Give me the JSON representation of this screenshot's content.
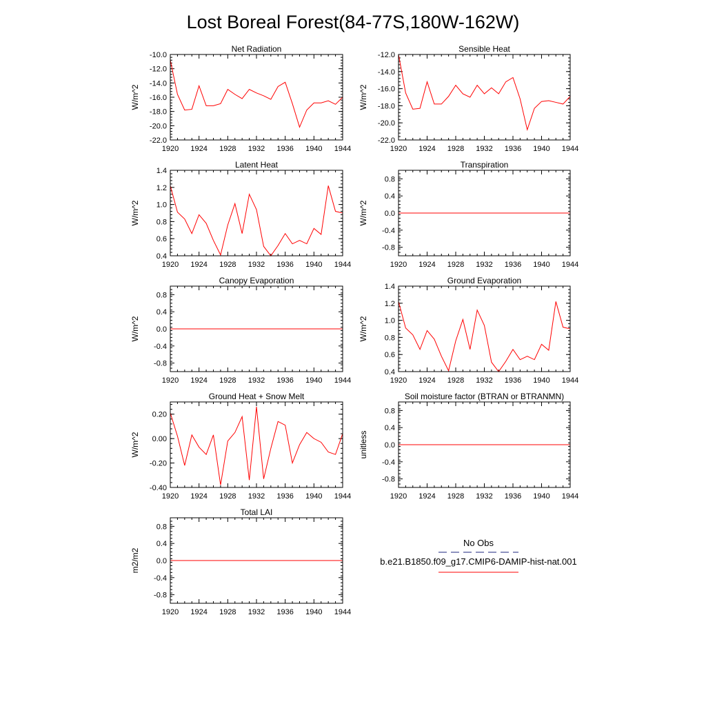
{
  "title": "Lost Boreal Forest(84-77S,180W-162W)",
  "legend": {
    "obs_label": "No Obs",
    "obs_color": "#1a237e",
    "model_label": "b.e21.B1850.f09_g17.CMIP6-DAMIP-hist-nat.001",
    "model_color": "#ff0000"
  },
  "chart_data": [
    {
      "type": "line",
      "title": "Net Radiation",
      "ylabel": "W/m^2",
      "xlim": [
        1920,
        1944
      ],
      "ylim": [
        -22,
        -10
      ],
      "x_ticks": [
        "1920",
        "1924",
        "1928",
        "1932",
        "1936",
        "1940",
        "1944"
      ],
      "y_ticks": [
        "-22.0",
        "-20.0",
        "-18.0",
        "-16.0",
        "-14.0",
        "-12.0",
        "-10.0"
      ],
      "y_tick_values": [
        -22,
        -20,
        -18,
        -16,
        -14,
        -12,
        -10
      ],
      "series": [
        {
          "color": "#ff0000",
          "x": [
            1920,
            1921,
            1922,
            1923,
            1924,
            1925,
            1926,
            1927,
            1928,
            1929,
            1930,
            1931,
            1932,
            1933,
            1934,
            1935,
            1936,
            1937,
            1938,
            1939,
            1940,
            1941,
            1942,
            1943,
            1944
          ],
          "values": [
            -10.8,
            -15.6,
            -17.8,
            -17.7,
            -14.4,
            -17.2,
            -17.2,
            -16.9,
            -14.9,
            -15.6,
            -16.2,
            -14.9,
            -15.4,
            -15.8,
            -16.3,
            -14.5,
            -13.9,
            -16.9,
            -20.2,
            -17.8,
            -16.8,
            -16.8,
            -16.5,
            -17.0,
            -16.0
          ]
        }
      ]
    },
    {
      "type": "line",
      "title": "Sensible Heat",
      "ylabel": "W/m^2",
      "xlim": [
        1920,
        1944
      ],
      "ylim": [
        -22,
        -12
      ],
      "x_ticks": [
        "1920",
        "1924",
        "1928",
        "1932",
        "1936",
        "1940",
        "1944"
      ],
      "y_ticks": [
        "-22.0",
        "-20.0",
        "-18.0",
        "-16.0",
        "-14.0",
        "-12.0"
      ],
      "y_tick_values": [
        -22,
        -20,
        -18,
        -16,
        -14,
        -12
      ],
      "series": [
        {
          "color": "#ff0000",
          "x": [
            1920,
            1921,
            1922,
            1923,
            1924,
            1925,
            1926,
            1927,
            1928,
            1929,
            1930,
            1931,
            1932,
            1933,
            1934,
            1935,
            1936,
            1937,
            1938,
            1939,
            1940,
            1941,
            1942,
            1943,
            1944
          ],
          "values": [
            -12.0,
            -16.5,
            -18.4,
            -18.3,
            -15.2,
            -17.8,
            -17.8,
            -16.9,
            -15.6,
            -16.6,
            -17.0,
            -15.6,
            -16.6,
            -15.9,
            -16.6,
            -15.2,
            -14.7,
            -17.2,
            -20.8,
            -18.3,
            -17.5,
            -17.4,
            -17.6,
            -17.8,
            -16.9
          ]
        }
      ]
    },
    {
      "type": "line",
      "title": "Latent Heat",
      "ylabel": "W/m^2",
      "xlim": [
        1920,
        1944
      ],
      "ylim": [
        0.4,
        1.4
      ],
      "x_ticks": [
        "1920",
        "1924",
        "1928",
        "1932",
        "1936",
        "1940",
        "1944"
      ],
      "y_ticks": [
        "0.4",
        "0.6",
        "0.8",
        "1.0",
        "1.2",
        "1.4"
      ],
      "y_tick_values": [
        0.4,
        0.6,
        0.8,
        1.0,
        1.2,
        1.4
      ],
      "series": [
        {
          "color": "#ff0000",
          "x": [
            1920,
            1921,
            1922,
            1923,
            1924,
            1925,
            1926,
            1927,
            1928,
            1929,
            1930,
            1931,
            1932,
            1933,
            1934,
            1935,
            1936,
            1937,
            1938,
            1939,
            1940,
            1941,
            1942,
            1943,
            1944
          ],
          "values": [
            1.22,
            0.91,
            0.83,
            0.66,
            0.88,
            0.78,
            0.58,
            0.41,
            0.76,
            1.01,
            0.66,
            1.12,
            0.94,
            0.51,
            0.4,
            0.52,
            0.66,
            0.54,
            0.58,
            0.54,
            0.72,
            0.65,
            1.22,
            0.92,
            0.9
          ]
        }
      ]
    },
    {
      "type": "line",
      "title": "Transpiration",
      "ylabel": "W/m^2",
      "xlim": [
        1920,
        1944
      ],
      "ylim": [
        -1.0,
        1.0
      ],
      "x_ticks": [
        "1920",
        "1924",
        "1928",
        "1932",
        "1936",
        "1940",
        "1944"
      ],
      "y_ticks": [
        "-0.8",
        "-0.4",
        "0.0",
        "0.4",
        "0.8"
      ],
      "y_tick_values": [
        -0.8,
        -0.4,
        0.0,
        0.4,
        0.8
      ],
      "series": [
        {
          "color": "#ff0000",
          "x": [
            1920,
            1944
          ],
          "values": [
            0.0,
            0.0
          ]
        }
      ]
    },
    {
      "type": "line",
      "title": "Canopy Evaporation",
      "ylabel": "W/m^2",
      "xlim": [
        1920,
        1944
      ],
      "ylim": [
        -1.0,
        1.0
      ],
      "x_ticks": [
        "1920",
        "1924",
        "1928",
        "1932",
        "1936",
        "1940",
        "1944"
      ],
      "y_ticks": [
        "-0.8",
        "-0.4",
        "0.0",
        "0.4",
        "0.8"
      ],
      "y_tick_values": [
        -0.8,
        -0.4,
        0.0,
        0.4,
        0.8
      ],
      "series": [
        {
          "color": "#ff0000",
          "x": [
            1920,
            1944
          ],
          "values": [
            0.0,
            0.0
          ]
        }
      ]
    },
    {
      "type": "line",
      "title": "Ground Evaporation",
      "ylabel": "W/m^2",
      "xlim": [
        1920,
        1944
      ],
      "ylim": [
        0.4,
        1.4
      ],
      "x_ticks": [
        "1920",
        "1924",
        "1928",
        "1932",
        "1936",
        "1940",
        "1944"
      ],
      "y_ticks": [
        "0.4",
        "0.6",
        "0.8",
        "1.0",
        "1.2",
        "1.4"
      ],
      "y_tick_values": [
        0.4,
        0.6,
        0.8,
        1.0,
        1.2,
        1.4
      ],
      "series": [
        {
          "color": "#ff0000",
          "x": [
            1920,
            1921,
            1922,
            1923,
            1924,
            1925,
            1926,
            1927,
            1928,
            1929,
            1930,
            1931,
            1932,
            1933,
            1934,
            1935,
            1936,
            1937,
            1938,
            1939,
            1940,
            1941,
            1942,
            1943,
            1944
          ],
          "values": [
            1.22,
            0.91,
            0.83,
            0.66,
            0.88,
            0.78,
            0.58,
            0.41,
            0.76,
            1.01,
            0.66,
            1.12,
            0.94,
            0.51,
            0.4,
            0.52,
            0.66,
            0.54,
            0.58,
            0.54,
            0.72,
            0.65,
            1.22,
            0.92,
            0.9
          ]
        }
      ]
    },
    {
      "type": "line",
      "title": "Ground Heat + Snow Melt",
      "ylabel": "W/m^2",
      "xlim": [
        1920,
        1944
      ],
      "ylim": [
        -0.4,
        0.3
      ],
      "x_ticks": [
        "1920",
        "1924",
        "1928",
        "1932",
        "1936",
        "1940",
        "1944"
      ],
      "y_ticks": [
        "-0.40",
        "-0.20",
        "0.00",
        "0.20"
      ],
      "y_tick_values": [
        -0.4,
        -0.2,
        0.0,
        0.2
      ],
      "series": [
        {
          "color": "#ff0000",
          "x": [
            1920,
            1921,
            1922,
            1923,
            1924,
            1925,
            1926,
            1927,
            1928,
            1929,
            1930,
            1931,
            1932,
            1933,
            1934,
            1935,
            1936,
            1937,
            1938,
            1939,
            1940,
            1941,
            1942,
            1943,
            1944
          ],
          "values": [
            0.21,
            0.02,
            -0.22,
            0.03,
            -0.07,
            -0.13,
            0.03,
            -0.38,
            -0.02,
            0.05,
            0.18,
            -0.34,
            0.26,
            -0.33,
            -0.08,
            0.14,
            0.11,
            -0.2,
            -0.05,
            0.05,
            0.0,
            -0.03,
            -0.11,
            -0.13,
            0.04
          ]
        }
      ]
    },
    {
      "type": "line",
      "title": "Soil moisture factor (BTRAN or BTRANMN)",
      "ylabel": "unitless",
      "xlim": [
        1920,
        1944
      ],
      "ylim": [
        -1.0,
        1.0
      ],
      "x_ticks": [
        "1920",
        "1924",
        "1928",
        "1932",
        "1936",
        "1940",
        "1944"
      ],
      "y_ticks": [
        "-0.8",
        "-0.4",
        "0.0",
        "0.4",
        "0.8"
      ],
      "y_tick_values": [
        -0.8,
        -0.4,
        0.0,
        0.4,
        0.8
      ],
      "series": [
        {
          "color": "#ff0000",
          "x": [
            1920,
            1944
          ],
          "values": [
            0.0,
            0.0
          ]
        }
      ]
    },
    {
      "type": "line",
      "title": "Total LAI",
      "ylabel": "m2/m2",
      "xlim": [
        1920,
        1944
      ],
      "ylim": [
        -1.0,
        1.0
      ],
      "x_ticks": [
        "1920",
        "1924",
        "1928",
        "1932",
        "1936",
        "1940",
        "1944"
      ],
      "y_ticks": [
        "-0.8",
        "-0.4",
        "0.0",
        "0.4",
        "0.8"
      ],
      "y_tick_values": [
        -0.8,
        -0.4,
        0.0,
        0.4,
        0.8
      ],
      "series": [
        {
          "color": "#ff0000",
          "x": [
            1920,
            1944
          ],
          "values": [
            0.0,
            0.0
          ]
        }
      ]
    }
  ]
}
